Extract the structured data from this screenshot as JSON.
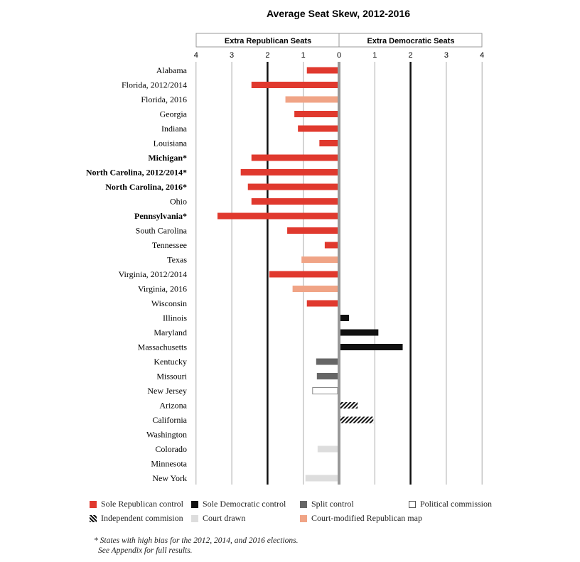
{
  "chart_data": {
    "type": "bar",
    "orientation": "horizontal",
    "title": "Average Seat Skew, 2012-2016",
    "header_left": "Extra Republican Seats",
    "header_right": "Extra Democratic Seats",
    "xlim": [
      -4,
      4
    ],
    "tick_labels": [
      "4",
      "3",
      "2",
      "1",
      "0",
      "1",
      "2",
      "3",
      "4"
    ],
    "categories": [
      {
        "label": "Alabama",
        "value": -0.9,
        "type": "rep",
        "bold": false
      },
      {
        "label": "Florida, 2012/2014",
        "value": -2.45,
        "type": "rep",
        "bold": false
      },
      {
        "label": "Florida, 2016",
        "value": -1.5,
        "type": "courtrep",
        "bold": false
      },
      {
        "label": "Georgia",
        "value": -1.25,
        "type": "rep",
        "bold": false
      },
      {
        "label": "Indiana",
        "value": -1.15,
        "type": "rep",
        "bold": false
      },
      {
        "label": "Louisiana",
        "value": -0.55,
        "type": "rep",
        "bold": false
      },
      {
        "label": "Michigan*",
        "value": -2.45,
        "type": "rep",
        "bold": true
      },
      {
        "label": "North Carolina, 2012/2014*",
        "value": -2.75,
        "type": "rep",
        "bold": true
      },
      {
        "label": "North Carolina, 2016*",
        "value": -2.55,
        "type": "rep",
        "bold": true
      },
      {
        "label": "Ohio",
        "value": -2.45,
        "type": "rep",
        "bold": false
      },
      {
        "label": "Pennsylvania*",
        "value": -3.4,
        "type": "rep",
        "bold": true
      },
      {
        "label": "South Carolina",
        "value": -1.45,
        "type": "rep",
        "bold": false
      },
      {
        "label": "Tennessee",
        "value": -0.4,
        "type": "rep",
        "bold": false
      },
      {
        "label": "Texas",
        "value": -1.05,
        "type": "courtrep",
        "bold": false
      },
      {
        "label": "Virginia, 2012/2014",
        "value": -1.95,
        "type": "rep",
        "bold": false
      },
      {
        "label": "Virginia, 2016",
        "value": -1.3,
        "type": "courtrep",
        "bold": false
      },
      {
        "label": "Wisconsin",
        "value": -0.9,
        "type": "rep",
        "bold": false
      },
      {
        "label": "Illinois",
        "value": 0.28,
        "type": "dem",
        "bold": false
      },
      {
        "label": "Maryland",
        "value": 1.1,
        "type": "dem",
        "bold": false
      },
      {
        "label": "Massachusetts",
        "value": 1.78,
        "type": "dem",
        "bold": false
      },
      {
        "label": "Kentucky",
        "value": -0.64,
        "type": "split",
        "bold": false
      },
      {
        "label": "Missouri",
        "value": -0.62,
        "type": "split",
        "bold": false
      },
      {
        "label": "New Jersey",
        "value": -0.74,
        "type": "political",
        "bold": false
      },
      {
        "label": "Arizona",
        "value": 0.52,
        "type": "independent",
        "bold": false
      },
      {
        "label": "California",
        "value": 0.96,
        "type": "independent",
        "bold": false
      },
      {
        "label": "Washington",
        "value": 0,
        "type": "independent",
        "bold": false
      },
      {
        "label": "Colorado",
        "value": -0.6,
        "type": "court",
        "bold": false
      },
      {
        "label": "Minnesota",
        "value": 0,
        "type": "court",
        "bold": false
      },
      {
        "label": "New York",
        "value": -0.94,
        "type": "court",
        "bold": false
      }
    ],
    "legend": [
      {
        "key": "rep",
        "label": "Sole Republican control"
      },
      {
        "key": "dem",
        "label": "Sole Democratic control"
      },
      {
        "key": "split",
        "label": "Split control"
      },
      {
        "key": "political",
        "label": "Political commission"
      },
      {
        "key": "independent",
        "label": "Independent commision"
      },
      {
        "key": "court",
        "label": "Court drawn"
      },
      {
        "key": "courtrep",
        "label": "Court-modified Republican map"
      }
    ],
    "colors": {
      "rep": "#e0392e",
      "dem": "#111111",
      "split": "#666666",
      "political": "#ffffff",
      "independent": "hatch",
      "court": "#dddddd",
      "courtrep": "#f0a486"
    }
  },
  "footnote": {
    "line1": "* States with high bias for the 2012, 2014, and 2016 elections.",
    "line2": "See Appendix for full results."
  }
}
